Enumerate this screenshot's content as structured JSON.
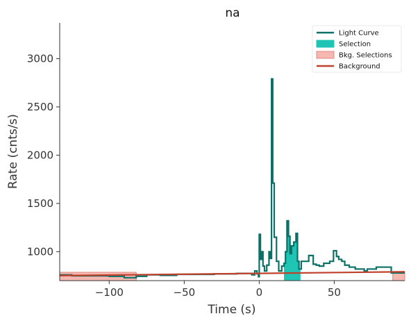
{
  "chart_data": {
    "type": "line",
    "title": "na",
    "xlabel": "Time (s)",
    "ylabel": "Rate (cnts/s)",
    "xlim": [
      -133,
      97
    ],
    "ylim": [
      700,
      3370
    ],
    "xticks": [
      -100,
      -50,
      0,
      50
    ],
    "xtick_labels": [
      "−100",
      "−50",
      "0",
      "50"
    ],
    "yticks": [
      1000,
      1500,
      2000,
      2500,
      3000
    ],
    "ytick_labels": [
      "1000",
      "1500",
      "2000",
      "2500",
      "3000"
    ],
    "grid": false,
    "legend_position": "top-right",
    "colors": {
      "light_curve": "#0b7066",
      "selection": "#20c4b4",
      "bkg_selection_fill": "#f4b8b0",
      "bkg_selection_edge": "#e0897f",
      "background": "#c0402b",
      "axis": "#333333"
    },
    "series": [
      {
        "name": "Light Curve",
        "kind": "step",
        "x": [
          -133,
          -125,
          -118,
          -100,
          -90,
          -82,
          -75,
          -66,
          -55,
          -45,
          -30,
          -15,
          -5,
          -3,
          -1.5,
          -0.5,
          0,
          0.8,
          1.5,
          2.5,
          3.5,
          5,
          6.5,
          7.5,
          8.2,
          9,
          10,
          11.5,
          13,
          15,
          16.5,
          17.5,
          18.5,
          19.5,
          20.5,
          21.5,
          23,
          24.5,
          25.5,
          26.5,
          28,
          30,
          33,
          36,
          38,
          40,
          43,
          47,
          49.5,
          51.5,
          53,
          55,
          57,
          60,
          64,
          70,
          72,
          78,
          88,
          97
        ],
        "y": [
          760,
          750,
          750,
          745,
          730,
          745,
          760,
          755,
          765,
          765,
          770,
          775,
          760,
          800,
          770,
          740,
          1180,
          920,
          1000,
          850,
          800,
          860,
          1000,
          930,
          2790,
          1710,
          1150,
          900,
          800,
          850,
          880,
          1000,
          1320,
          1160,
          980,
          1060,
          1100,
          1190,
          900,
          820,
          900,
          900,
          960,
          870,
          860,
          850,
          880,
          900,
          1010,
          950,
          920,
          900,
          860,
          840,
          820,
          800,
          820,
          840,
          780,
          780
        ]
      },
      {
        "name": "Selection",
        "kind": "fill_step",
        "x": [
          16.5,
          17.5,
          18.5,
          19.5,
          20.5,
          21.5,
          23,
          24.5,
          25.5,
          26.5
        ],
        "y": [
          880,
          1000,
          1320,
          1160,
          980,
          1060,
          1100,
          1190,
          900,
          820
        ]
      },
      {
        "name": "Bkg. Selections",
        "kind": "spans",
        "ranges": [
          [
            -133,
            -82
          ],
          [
            89,
            97
          ]
        ]
      },
      {
        "name": "Background",
        "kind": "line",
        "x": [
          -133,
          97
        ],
        "y": [
          752,
          792
        ]
      }
    ]
  }
}
